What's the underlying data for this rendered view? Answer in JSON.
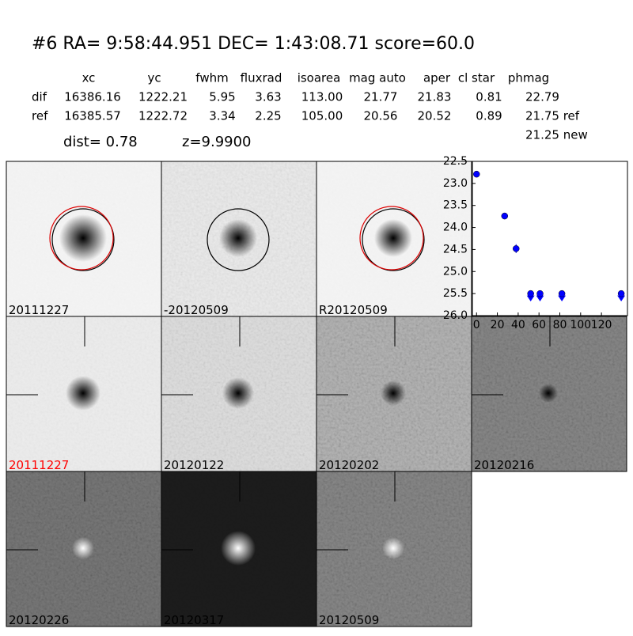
{
  "header": {
    "title": "#6   RA= 9:58:44.951 DEC= 1:43:08.71      score=60.0",
    "columns": [
      "xc",
      "yc",
      "fwhm",
      "fluxrad",
      "isoarea",
      "mag auto",
      "aper",
      "cl star",
      "phmag"
    ],
    "rows": [
      [
        "dif",
        "16386.16",
        "1222.21",
        "5.95",
        "3.63",
        "113.00",
        "21.77",
        "21.83",
        "0.81",
        "22.79"
      ],
      [
        "ref",
        "16385.57",
        "1222.72",
        "3.34",
        "2.25",
        "105.00",
        "20.56",
        "20.52",
        "0.89",
        "21.75 ref"
      ]
    ],
    "extra": "21.25 new",
    "dist": "dist=  0.78",
    "z": "z=9.9900"
  },
  "panels": [
    {
      "label": "20111227"
    },
    {
      "label": "-20120509"
    },
    {
      "label": "R20120509"
    },
    {
      "label": "20111227",
      "color": "#ff0000"
    },
    {
      "label": "20120122"
    },
    {
      "label": "20120202"
    },
    {
      "label": "20120216"
    },
    {
      "label": "20120226"
    },
    {
      "label": "20120317"
    },
    {
      "label": "20120509"
    }
  ],
  "chart_data": {
    "type": "scatter",
    "xlim": [
      -4,
      145
    ],
    "ylim": [
      26.0,
      22.5
    ],
    "xticks": [
      0,
      20,
      40,
      60,
      80,
      100,
      120
    ],
    "yticks": [
      22.5,
      {
        "value": 23.0,
        "label": "23.0"
      },
      23.5,
      {
        "value": 24.0,
        "label": "24.0"
      },
      24.5,
      {
        "value": 25.0,
        "label": "25.0"
      },
      25.5,
      {
        "value": 26.0,
        "label": "26.0"
      }
    ],
    "series": [
      {
        "color": "#0000ff",
        "marker": "point",
        "x": [
          0,
          27,
          38
        ],
        "values": [
          22.79,
          23.74,
          24.48
        ],
        "errors": [
          0.02,
          0.04,
          0.1
        ]
      },
      {
        "color": "#0000ff",
        "marker": "limit",
        "x": [
          52,
          61,
          82,
          139
        ],
        "values": [
          25.5,
          25.5,
          25.5,
          25.5
        ]
      }
    ]
  }
}
